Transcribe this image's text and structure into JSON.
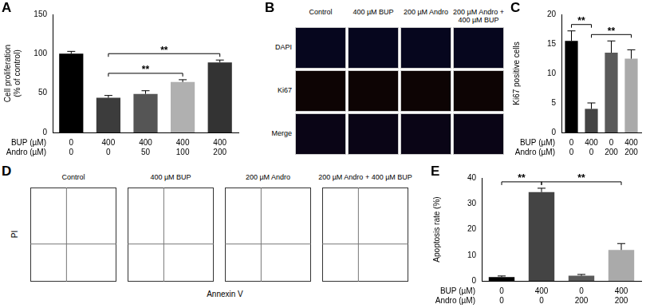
{
  "chart_data": [
    {
      "panel": "A",
      "type": "bar",
      "y_label": [
        "Cell proliferation",
        "(% of control)"
      ],
      "x_rows": [
        {
          "label": "BUP (µM)",
          "values": [
            0,
            400,
            400,
            400,
            400
          ]
        },
        {
          "label": "Andro (µM)",
          "values": [
            0,
            0,
            50,
            100,
            200
          ]
        }
      ],
      "values": [
        100,
        44,
        49,
        64,
        89
      ],
      "errors": [
        3,
        3,
        4,
        3,
        3
      ],
      "colors": [
        "#000000",
        "#3c3c3c",
        "#555555",
        "#b0b0b0",
        "#333333"
      ],
      "ylim": [
        0,
        150
      ],
      "yticks": [
        0,
        50,
        100,
        150
      ],
      "grid": false,
      "significance": [
        {
          "from": 1,
          "to": 3,
          "label": "**"
        },
        {
          "from": 1,
          "to": 4,
          "label": "**"
        }
      ]
    },
    {
      "panel": "C",
      "type": "bar",
      "y_label": [
        "Ki67 positive cells"
      ],
      "x_rows": [
        {
          "label": "BUP (µM)",
          "values": [
            0,
            400,
            0,
            400
          ]
        },
        {
          "label": "Andro (µM)",
          "values": [
            0,
            0,
            200,
            200
          ]
        }
      ],
      "values": [
        15.5,
        4,
        13.5,
        12.5
      ],
      "errors": [
        1.7,
        1,
        2,
        1.5
      ],
      "colors": [
        "#000000",
        "#444444",
        "#5a5a5a",
        "#aaaaaa"
      ],
      "ylim": [
        0,
        20
      ],
      "yticks": [
        0,
        5,
        10,
        15,
        20
      ],
      "grid": false,
      "significance": [
        {
          "from": 0,
          "to": 1,
          "label": "**"
        },
        {
          "from": 1,
          "to": 3,
          "label": "**"
        }
      ]
    },
    {
      "panel": "E",
      "type": "bar",
      "y_label": [
        "Apoptosis rate (%)"
      ],
      "x_rows": [
        {
          "label": "BUP (µM)",
          "values": [
            0,
            400,
            0,
            400
          ]
        },
        {
          "label": "Andro (µM)",
          "values": [
            0,
            0,
            200,
            200
          ]
        }
      ],
      "values": [
        1.5,
        34.5,
        2,
        12
      ],
      "errors": [
        0.4,
        1.5,
        0.5,
        2.5
      ],
      "colors": [
        "#000000",
        "#444444",
        "#5a5a5a",
        "#aaaaaa"
      ],
      "ylim": [
        0,
        40
      ],
      "yticks": [
        0,
        10,
        20,
        30,
        40
      ],
      "grid": false,
      "significance": [
        {
          "from": 0,
          "to": 1,
          "label": "**"
        },
        {
          "from": 1,
          "to": 3,
          "label": "**"
        }
      ]
    }
  ],
  "panel_B": {
    "panel": "B",
    "columns": [
      "Control",
      "400 µM BUP",
      "200 µM Andro",
      "200 µM Andro + 400 µM BUP"
    ],
    "rows": [
      "DAPI",
      "Ki67",
      "Merge"
    ]
  },
  "panel_D": {
    "panel": "D",
    "columns": [
      "Control",
      "400 µM BUP",
      "200 µM Andro",
      "200 µM Andro + 400 µM BUP"
    ],
    "y_label": "PI",
    "x_label": "Annexin V"
  }
}
